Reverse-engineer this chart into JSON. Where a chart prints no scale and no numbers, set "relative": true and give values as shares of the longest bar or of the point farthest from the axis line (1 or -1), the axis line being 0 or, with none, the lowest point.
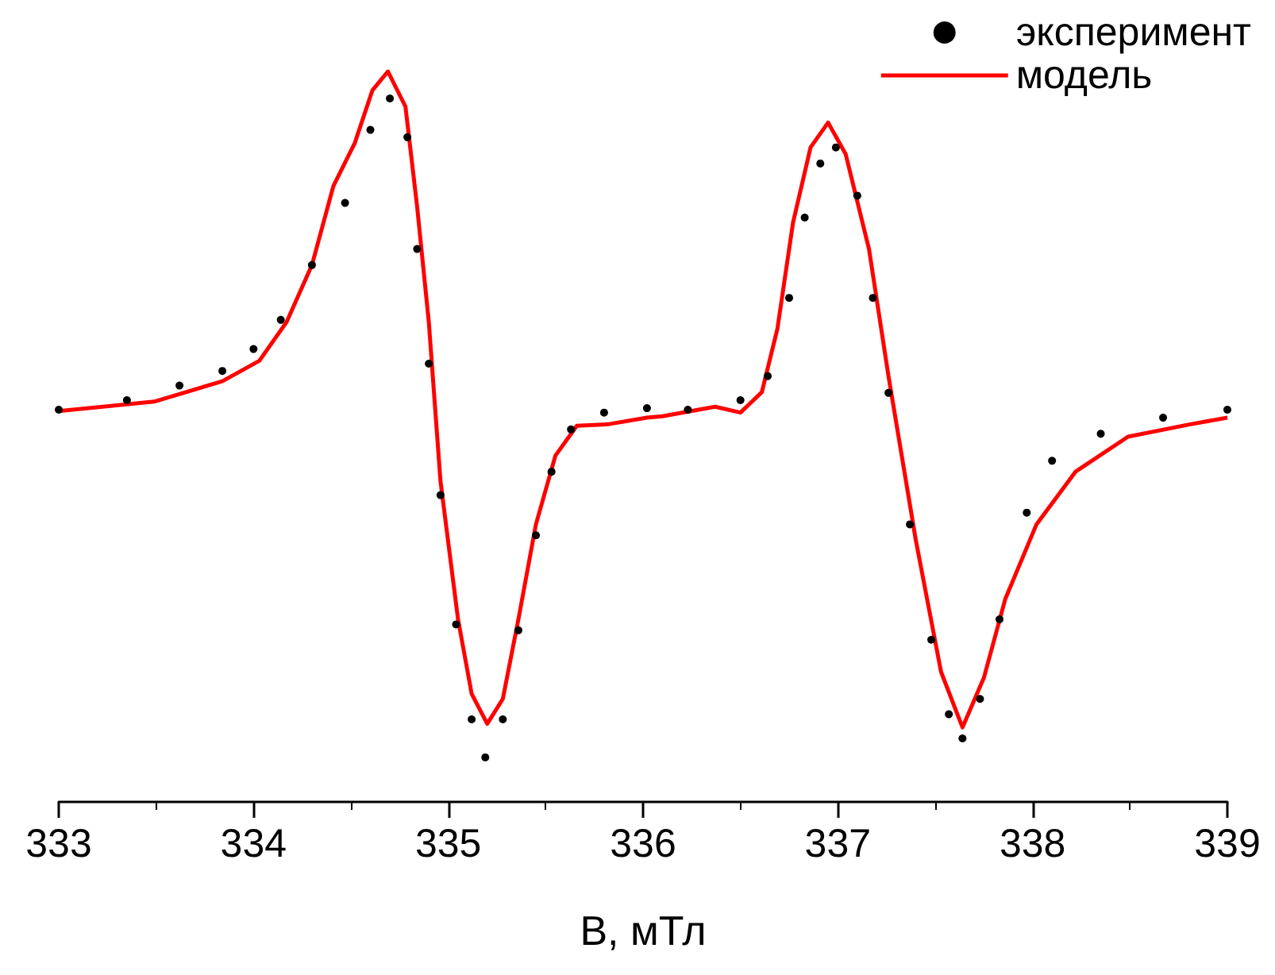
{
  "chart_data": {
    "type": "line",
    "xlabel": "B, мТл",
    "relative": true,
    "xlim": [
      333,
      339
    ],
    "xticks": [
      333,
      334,
      335,
      336,
      337,
      338,
      339
    ],
    "grid": false,
    "legend": "top right",
    "series": [
      {
        "name": "эксперимент",
        "type": "scatter",
        "marker": "circle",
        "color": "#000000",
        "x": [
          333.0,
          333.35,
          333.62,
          333.84,
          334.0,
          334.14,
          334.3,
          334.47,
          334.6,
          334.7,
          334.79,
          334.84,
          334.9,
          334.96,
          335.04,
          335.12,
          335.19,
          335.28,
          335.36,
          335.45,
          335.53,
          335.63,
          335.8,
          336.02,
          336.23,
          336.5,
          336.64,
          336.75,
          336.83,
          336.91,
          336.99,
          337.1,
          337.18,
          337.26,
          337.37,
          337.48,
          337.57,
          337.64,
          337.73,
          337.83,
          337.97,
          338.1,
          338.35,
          338.67,
          339.0
        ],
        "values": [
          0.537,
          0.55,
          0.57,
          0.59,
          0.62,
          0.66,
          0.735,
          0.82,
          0.92,
          0.963,
          0.91,
          0.757,
          0.6,
          0.42,
          0.243,
          0.113,
          0.061,
          0.113,
          0.235,
          0.365,
          0.452,
          0.51,
          0.533,
          0.539,
          0.537,
          0.55,
          0.583,
          0.69,
          0.8,
          0.874,
          0.896,
          0.83,
          0.69,
          0.56,
          0.38,
          0.222,
          0.12,
          0.087,
          0.141,
          0.25,
          0.396,
          0.467,
          0.504,
          0.526,
          0.537
        ]
      },
      {
        "name": "модель",
        "marker": "none",
        "line_style": "solid",
        "color": "#ff0000",
        "x": [
          333.0,
          333.49,
          333.84,
          334.03,
          334.17,
          334.3,
          334.41,
          334.52,
          334.61,
          334.69,
          334.78,
          334.84,
          334.9,
          334.96,
          335.05,
          335.12,
          335.2,
          335.28,
          335.36,
          335.45,
          335.55,
          335.66,
          335.82,
          336.02,
          336.1,
          336.37,
          336.5,
          336.61,
          336.69,
          336.77,
          336.86,
          336.95,
          337.04,
          337.16,
          337.26,
          337.4,
          337.53,
          337.64,
          337.75,
          337.86,
          338.02,
          338.22,
          338.49,
          338.81,
          339.0
        ],
        "values": [
          0.535,
          0.548,
          0.576,
          0.604,
          0.657,
          0.735,
          0.843,
          0.902,
          0.974,
          1.0,
          0.952,
          0.815,
          0.657,
          0.439,
          0.25,
          0.148,
          0.107,
          0.141,
          0.25,
          0.38,
          0.474,
          0.515,
          0.517,
          0.526,
          0.528,
          0.541,
          0.533,
          0.561,
          0.648,
          0.793,
          0.896,
          0.93,
          0.887,
          0.757,
          0.583,
          0.359,
          0.178,
          0.102,
          0.17,
          0.278,
          0.38,
          0.452,
          0.5,
          0.517,
          0.526
        ]
      }
    ]
  }
}
